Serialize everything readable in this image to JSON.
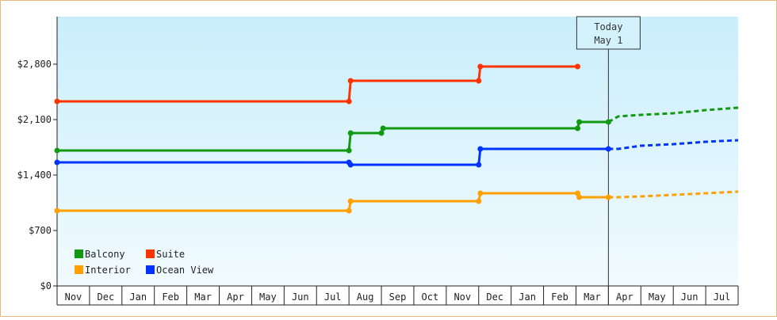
{
  "chart_data": {
    "type": "line",
    "title": "",
    "xlabel": "",
    "ylabel": "",
    "ylim": [
      0,
      3400
    ],
    "yticks": [
      0,
      700,
      1400,
      2100,
      2800
    ],
    "ytick_labels": [
      "$0",
      "$700",
      "$1,400",
      "$2,100",
      "$2,800"
    ],
    "x_months": [
      "Nov",
      "Dec",
      "Jan",
      "Feb",
      "Mar",
      "Apr",
      "May",
      "Jun",
      "Jul",
      "Aug",
      "Sep",
      "Oct",
      "Nov",
      "Dec",
      "Jan",
      "Feb",
      "Mar",
      "Apr",
      "May",
      "Jun",
      "Jul"
    ],
    "grid": false,
    "legend_position": "bottom-left",
    "today": {
      "line1": "Today",
      "line2": "May 1",
      "x": 17.0
    },
    "series": [
      {
        "name": "Balcony",
        "color": "#119911",
        "points": [
          [
            0,
            1710
          ],
          [
            9.0,
            1710
          ],
          [
            9.05,
            1930
          ],
          [
            10.0,
            1930
          ],
          [
            10.05,
            1990
          ],
          [
            16.05,
            1990
          ],
          [
            16.1,
            2070
          ],
          [
            17.0,
            2070
          ]
        ],
        "forecast": [
          [
            17.0,
            2070
          ],
          [
            17.3,
            2140
          ],
          [
            18.0,
            2160
          ],
          [
            19.0,
            2180
          ],
          [
            20.0,
            2220
          ],
          [
            21.0,
            2250
          ]
        ]
      },
      {
        "name": "Suite",
        "color": "#ff3300",
        "points": [
          [
            0,
            2330
          ],
          [
            9.0,
            2330
          ],
          [
            9.05,
            2590
          ],
          [
            13.0,
            2590
          ],
          [
            13.05,
            2770
          ],
          [
            16.05,
            2770
          ]
        ],
        "forecast": []
      },
      {
        "name": "Interior",
        "color": "#ffa000",
        "points": [
          [
            0,
            950
          ],
          [
            9.0,
            950
          ],
          [
            9.05,
            1070
          ],
          [
            13.0,
            1070
          ],
          [
            13.05,
            1170
          ],
          [
            16.05,
            1170
          ],
          [
            16.1,
            1120
          ],
          [
            17.0,
            1120
          ]
        ],
        "forecast": [
          [
            17.0,
            1120
          ],
          [
            17.3,
            1120
          ],
          [
            18.0,
            1130
          ],
          [
            19.0,
            1150
          ],
          [
            20.0,
            1170
          ],
          [
            21.0,
            1190
          ]
        ]
      },
      {
        "name": "Ocean View",
        "color": "#0033ff",
        "points": [
          [
            0,
            1560
          ],
          [
            9.0,
            1560
          ],
          [
            9.05,
            1530
          ],
          [
            13.0,
            1530
          ],
          [
            13.05,
            1730
          ],
          [
            17.0,
            1730
          ]
        ],
        "forecast": [
          [
            17.0,
            1730
          ],
          [
            17.3,
            1730
          ],
          [
            18.0,
            1770
          ],
          [
            19.0,
            1790
          ],
          [
            20.0,
            1820
          ],
          [
            21.0,
            1840
          ]
        ]
      }
    ],
    "markers": [
      {
        "series": "Balcony",
        "at": [
          [
            0,
            1710
          ],
          [
            9.0,
            1710
          ],
          [
            9.05,
            1930
          ],
          [
            10.0,
            1930
          ],
          [
            10.05,
            1990
          ],
          [
            16.05,
            1990
          ],
          [
            16.1,
            2070
          ],
          [
            17.0,
            2070
          ]
        ]
      },
      {
        "series": "Suite",
        "at": [
          [
            0,
            2330
          ],
          [
            9.0,
            2330
          ],
          [
            9.05,
            2590
          ],
          [
            13.0,
            2590
          ],
          [
            13.05,
            2770
          ],
          [
            16.05,
            2770
          ]
        ]
      },
      {
        "series": "Interior",
        "at": [
          [
            0,
            950
          ],
          [
            9.0,
            950
          ],
          [
            9.05,
            1070
          ],
          [
            13.0,
            1070
          ],
          [
            13.05,
            1170
          ],
          [
            16.05,
            1170
          ],
          [
            16.1,
            1120
          ],
          [
            17.0,
            1120
          ]
        ]
      },
      {
        "series": "Ocean View",
        "at": [
          [
            0,
            1560
          ],
          [
            9.0,
            1560
          ],
          [
            9.05,
            1530
          ],
          [
            13.0,
            1530
          ],
          [
            13.05,
            1730
          ],
          [
            17.0,
            1730
          ]
        ]
      }
    ],
    "legend": [
      {
        "label": "Balcony",
        "color": "#119911"
      },
      {
        "label": "Suite",
        "color": "#ff3300"
      },
      {
        "label": "Interior",
        "color": "#ffa000"
      },
      {
        "label": "Ocean View",
        "color": "#0033ff"
      }
    ]
  }
}
